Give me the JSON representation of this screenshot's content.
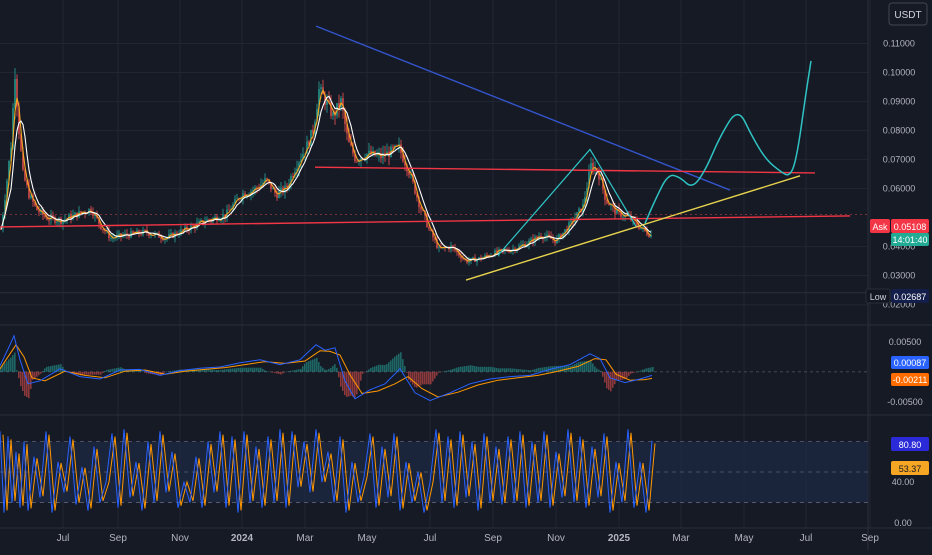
{
  "currency_label": "USDT",
  "colors": {
    "background": "#161a25",
    "grid": "#222633",
    "axis_text": "#b2b5be",
    "candle_up": "#26a69a",
    "candle_down": "#ef5350",
    "ma_fast": "#f5a623",
    "ma_slow": "#ffffff",
    "trend_blue": "#3355cc",
    "resistance_red": "#f23645",
    "support_yellow": "#e8d44d",
    "projection": "#2ec4c4",
    "macd_line": "#2962ff",
    "signal_line": "#ff9800",
    "stoch_k": "#2962ff",
    "stoch_d": "#ff9800",
    "stoch_band": "#1c2a45"
  },
  "price_labels": {
    "ask_tag": "Ask",
    "ask_value": "0.05108",
    "countdown": "14:01:40",
    "low_tag": "Low",
    "low_value": "0.02687"
  },
  "macd_labels": {
    "macd_value": "0.00087",
    "signal_value": "-0.00211"
  },
  "stoch_labels": {
    "upper_value": "80.80",
    "mid_value": "53.37"
  },
  "chart_data": [
    {
      "type": "candlestick",
      "title": "",
      "x_tick_labels": [
        "Jul",
        "Sep",
        "Nov",
        "2024",
        "Mar",
        "May",
        "Jul",
        "Sep",
        "Nov",
        "2025",
        "Mar",
        "May",
        "Jul",
        "Sep"
      ],
      "y_tick_labels": [
        "0.11000",
        "0.10000",
        "0.09000",
        "0.08000",
        "0.07000",
        "0.06000",
        "0.04000",
        "0.03000",
        "0.02000"
      ],
      "ylim": [
        0.015,
        0.12
      ],
      "grid": true,
      "price_path": [
        [
          0,
          0.046
        ],
        [
          5,
          0.06
        ],
        [
          10,
          0.075
        ],
        [
          14,
          0.1
        ],
        [
          18,
          0.08
        ],
        [
          22,
          0.065
        ],
        [
          28,
          0.058
        ],
        [
          35,
          0.053
        ],
        [
          45,
          0.05
        ],
        [
          60,
          0.049
        ],
        [
          75,
          0.051
        ],
        [
          90,
          0.053
        ],
        [
          100,
          0.047
        ],
        [
          110,
          0.043
        ],
        [
          125,
          0.044
        ],
        [
          145,
          0.045
        ],
        [
          165,
          0.043
        ],
        [
          185,
          0.046
        ],
        [
          205,
          0.049
        ],
        [
          225,
          0.051
        ],
        [
          240,
          0.058
        ],
        [
          255,
          0.06
        ],
        [
          265,
          0.063
        ],
        [
          275,
          0.058
        ],
        [
          285,
          0.06
        ],
        [
          295,
          0.068
        ],
        [
          305,
          0.074
        ],
        [
          312,
          0.08
        ],
        [
          318,
          0.094
        ],
        [
          325,
          0.09
        ],
        [
          332,
          0.085
        ],
        [
          340,
          0.09
        ],
        [
          347,
          0.076
        ],
        [
          355,
          0.07
        ],
        [
          365,
          0.072
        ],
        [
          380,
          0.071
        ],
        [
          398,
          0.074
        ],
        [
          408,
          0.066
        ],
        [
          418,
          0.055
        ],
        [
          428,
          0.046
        ],
        [
          438,
          0.039
        ],
        [
          450,
          0.04
        ],
        [
          465,
          0.035
        ],
        [
          480,
          0.036
        ],
        [
          495,
          0.038
        ],
        [
          510,
          0.039
        ],
        [
          525,
          0.041
        ],
        [
          540,
          0.044
        ],
        [
          555,
          0.042
        ],
        [
          570,
          0.048
        ],
        [
          582,
          0.054
        ],
        [
          590,
          0.068
        ],
        [
          597,
          0.066
        ],
        [
          605,
          0.056
        ],
        [
          615,
          0.052
        ],
        [
          628,
          0.05
        ],
        [
          638,
          0.047
        ],
        [
          645,
          0.045
        ],
        [
          650,
          0.044
        ]
      ],
      "moving_averages": [
        {
          "name": "",
          "color_key": "ma_fast",
          "period": 3
        },
        {
          "name": "",
          "color_key": "ma_slow",
          "period": 6
        }
      ],
      "trendlines": [
        {
          "color_key": "trend_blue",
          "from": [
            316,
            0.116
          ],
          "to": [
            730,
            0.0595
          ]
        },
        {
          "color_key": "resistance_red",
          "from": [
            0,
            0.0468
          ],
          "to": [
            850,
            0.0506
          ]
        },
        {
          "color_key": "resistance_red",
          "from": [
            315,
            0.0674
          ],
          "to": [
            815,
            0.0654
          ]
        },
        {
          "color_key": "support_yellow",
          "from": [
            466,
            0.0285
          ],
          "to": [
            800,
            0.0644
          ]
        }
      ],
      "projection_path": [
        [
          645,
          0.048
        ],
        [
          655,
          0.056
        ],
        [
          668,
          0.065
        ],
        [
          680,
          0.064
        ],
        [
          692,
          0.06
        ],
        [
          705,
          0.066
        ],
        [
          720,
          0.078
        ],
        [
          738,
          0.088
        ],
        [
          752,
          0.078
        ],
        [
          766,
          0.07
        ],
        [
          780,
          0.066
        ],
        [
          790,
          0.064
        ],
        [
          797,
          0.071
        ],
        [
          806,
          0.093
        ],
        [
          811,
          0.104
        ]
      ],
      "current_price": 0.05108,
      "period_low": 0.02687
    },
    {
      "type": "line",
      "title": "",
      "y_tick_labels": [
        "0.00500",
        "-0.00500"
      ],
      "ylim": [
        -0.0065,
        0.0075
      ],
      "zero_line": 0.0,
      "macd_line": [
        [
          0,
          0.001
        ],
        [
          10,
          0.0045
        ],
        [
          14,
          0.006
        ],
        [
          20,
          0.002
        ],
        [
          28,
          -0.002
        ],
        [
          40,
          -0.0015
        ],
        [
          60,
          0.0005
        ],
        [
          80,
          -0.0008
        ],
        [
          100,
          -0.0012
        ],
        [
          120,
          0.0003
        ],
        [
          140,
          0.0004
        ],
        [
          160,
          -0.0006
        ],
        [
          180,
          0.0002
        ],
        [
          200,
          0.0006
        ],
        [
          220,
          0.0008
        ],
        [
          240,
          0.0015
        ],
        [
          260,
          0.002
        ],
        [
          280,
          0.0012
        ],
        [
          300,
          0.002
        ],
        [
          316,
          0.0045
        ],
        [
          325,
          0.0036
        ],
        [
          335,
          0.004
        ],
        [
          345,
          -0.0015
        ],
        [
          355,
          -0.0045
        ],
        [
          370,
          -0.003
        ],
        [
          385,
          -0.002
        ],
        [
          400,
          0.0005
        ],
        [
          415,
          -0.0035
        ],
        [
          430,
          -0.0048
        ],
        [
          450,
          -0.0035
        ],
        [
          470,
          -0.002
        ],
        [
          490,
          -0.0012
        ],
        [
          510,
          -0.0008
        ],
        [
          530,
          -0.0006
        ],
        [
          550,
          0.0004
        ],
        [
          570,
          0.0012
        ],
        [
          590,
          0.003
        ],
        [
          600,
          0.0022
        ],
        [
          610,
          -0.001
        ],
        [
          625,
          -0.0018
        ],
        [
          640,
          -0.0012
        ],
        [
          652,
          -0.0006
        ]
      ],
      "signal_line": [
        [
          0,
          0.0005
        ],
        [
          10,
          0.003
        ],
        [
          16,
          0.0045
        ],
        [
          24,
          0.0025
        ],
        [
          32,
          -0.001
        ],
        [
          45,
          -0.0015
        ],
        [
          65,
          0.0001
        ],
        [
          85,
          -0.0006
        ],
        [
          105,
          -0.001
        ],
        [
          125,
          0.0001
        ],
        [
          145,
          0.0003
        ],
        [
          165,
          -0.0004
        ],
        [
          185,
          0.0001
        ],
        [
          205,
          0.0004
        ],
        [
          225,
          0.0007
        ],
        [
          245,
          0.0012
        ],
        [
          265,
          0.0017
        ],
        [
          285,
          0.0014
        ],
        [
          305,
          0.0018
        ],
        [
          320,
          0.0035
        ],
        [
          330,
          0.0034
        ],
        [
          340,
          0.0028
        ],
        [
          350,
          -0.0005
        ],
        [
          362,
          -0.0036
        ],
        [
          378,
          -0.0032
        ],
        [
          395,
          -0.002
        ],
        [
          408,
          -0.0008
        ],
        [
          422,
          -0.0028
        ],
        [
          438,
          -0.0042
        ],
        [
          458,
          -0.0034
        ],
        [
          478,
          -0.0022
        ],
        [
          498,
          -0.0014
        ],
        [
          518,
          -0.001
        ],
        [
          538,
          -0.0006
        ],
        [
          558,
          0.0001
        ],
        [
          578,
          0.0009
        ],
        [
          595,
          0.0022
        ],
        [
          606,
          0.002
        ],
        [
          616,
          -0.0004
        ],
        [
          630,
          -0.0014
        ],
        [
          645,
          -0.0013
        ],
        [
          652,
          -0.0011
        ]
      ],
      "current_macd": 0.00087,
      "current_signal": -0.00211
    },
    {
      "type": "line",
      "title": "",
      "y_tick_labels": [
        "40.00",
        "0.00"
      ],
      "ylim": [
        -5,
        100
      ],
      "bands": [
        20,
        50,
        80
      ],
      "k_line": [
        [
          0,
          90
        ],
        [
          4,
          10
        ],
        [
          8,
          85
        ],
        [
          12,
          20
        ],
        [
          16,
          70
        ],
        [
          20,
          15
        ],
        [
          24,
          80
        ],
        [
          28,
          12
        ],
        [
          34,
          65
        ],
        [
          40,
          25
        ],
        [
          46,
          90
        ],
        [
          52,
          10
        ],
        [
          58,
          60
        ],
        [
          64,
          30
        ],
        [
          70,
          85
        ],
        [
          76,
          18
        ],
        [
          82,
          55
        ],
        [
          88,
          12
        ],
        [
          94,
          75
        ],
        [
          100,
          20
        ],
        [
          106,
          40
        ],
        [
          112,
          88
        ],
        [
          118,
          15
        ],
        [
          124,
          92
        ],
        [
          130,
          25
        ],
        [
          136,
          60
        ],
        [
          142,
          12
        ],
        [
          148,
          80
        ],
        [
          154,
          20
        ],
        [
          160,
          90
        ],
        [
          166,
          30
        ],
        [
          172,
          70
        ],
        [
          178,
          15
        ],
        [
          184,
          40
        ],
        [
          190,
          20
        ],
        [
          196,
          65
        ],
        [
          202,
          15
        ],
        [
          208,
          80
        ],
        [
          214,
          30
        ],
        [
          220,
          90
        ],
        [
          226,
          15
        ],
        [
          232,
          85
        ],
        [
          238,
          10
        ],
        [
          244,
          90
        ],
        [
          250,
          20
        ],
        [
          256,
          75
        ],
        [
          262,
          15
        ],
        [
          268,
          85
        ],
        [
          274,
          20
        ],
        [
          280,
          92
        ],
        [
          286,
          15
        ],
        [
          292,
          90
        ],
        [
          298,
          35
        ],
        [
          304,
          80
        ],
        [
          310,
          30
        ],
        [
          316,
          92
        ],
        [
          322,
          40
        ],
        [
          328,
          70
        ],
        [
          334,
          20
        ],
        [
          340,
          85
        ],
        [
          346,
          10
        ],
        [
          352,
          60
        ],
        [
          358,
          20
        ],
        [
          364,
          45
        ],
        [
          370,
          88
        ],
        [
          376,
          15
        ],
        [
          382,
          75
        ],
        [
          388,
          25
        ],
        [
          394,
          88
        ],
        [
          400,
          12
        ],
        [
          406,
          60
        ],
        [
          412,
          20
        ],
        [
          418,
          50
        ],
        [
          424,
          10
        ],
        [
          430,
          40
        ],
        [
          436,
          92
        ],
        [
          442,
          20
        ],
        [
          448,
          85
        ],
        [
          454,
          15
        ],
        [
          460,
          90
        ],
        [
          466,
          25
        ],
        [
          472,
          80
        ],
        [
          478,
          12
        ],
        [
          484,
          88
        ],
        [
          490,
          20
        ],
        [
          496,
          75
        ],
        [
          502,
          18
        ],
        [
          508,
          85
        ],
        [
          514,
          20
        ],
        [
          520,
          90
        ],
        [
          526,
          15
        ],
        [
          532,
          80
        ],
        [
          538,
          20
        ],
        [
          544,
          90
        ],
        [
          550,
          15
        ],
        [
          556,
          70
        ],
        [
          562,
          25
        ],
        [
          568,
          92
        ],
        [
          574,
          20
        ],
        [
          580,
          85
        ],
        [
          586,
          15
        ],
        [
          592,
          75
        ],
        [
          598,
          25
        ],
        [
          604,
          88
        ],
        [
          610,
          10
        ],
        [
          616,
          60
        ],
        [
          622,
          20
        ],
        [
          628,
          92
        ],
        [
          634,
          15
        ],
        [
          640,
          60
        ],
        [
          646,
          10
        ],
        [
          652,
          80.8
        ]
      ],
      "d_line_offset": 3,
      "current_k": 80.8,
      "current_d": 53.37
    }
  ]
}
